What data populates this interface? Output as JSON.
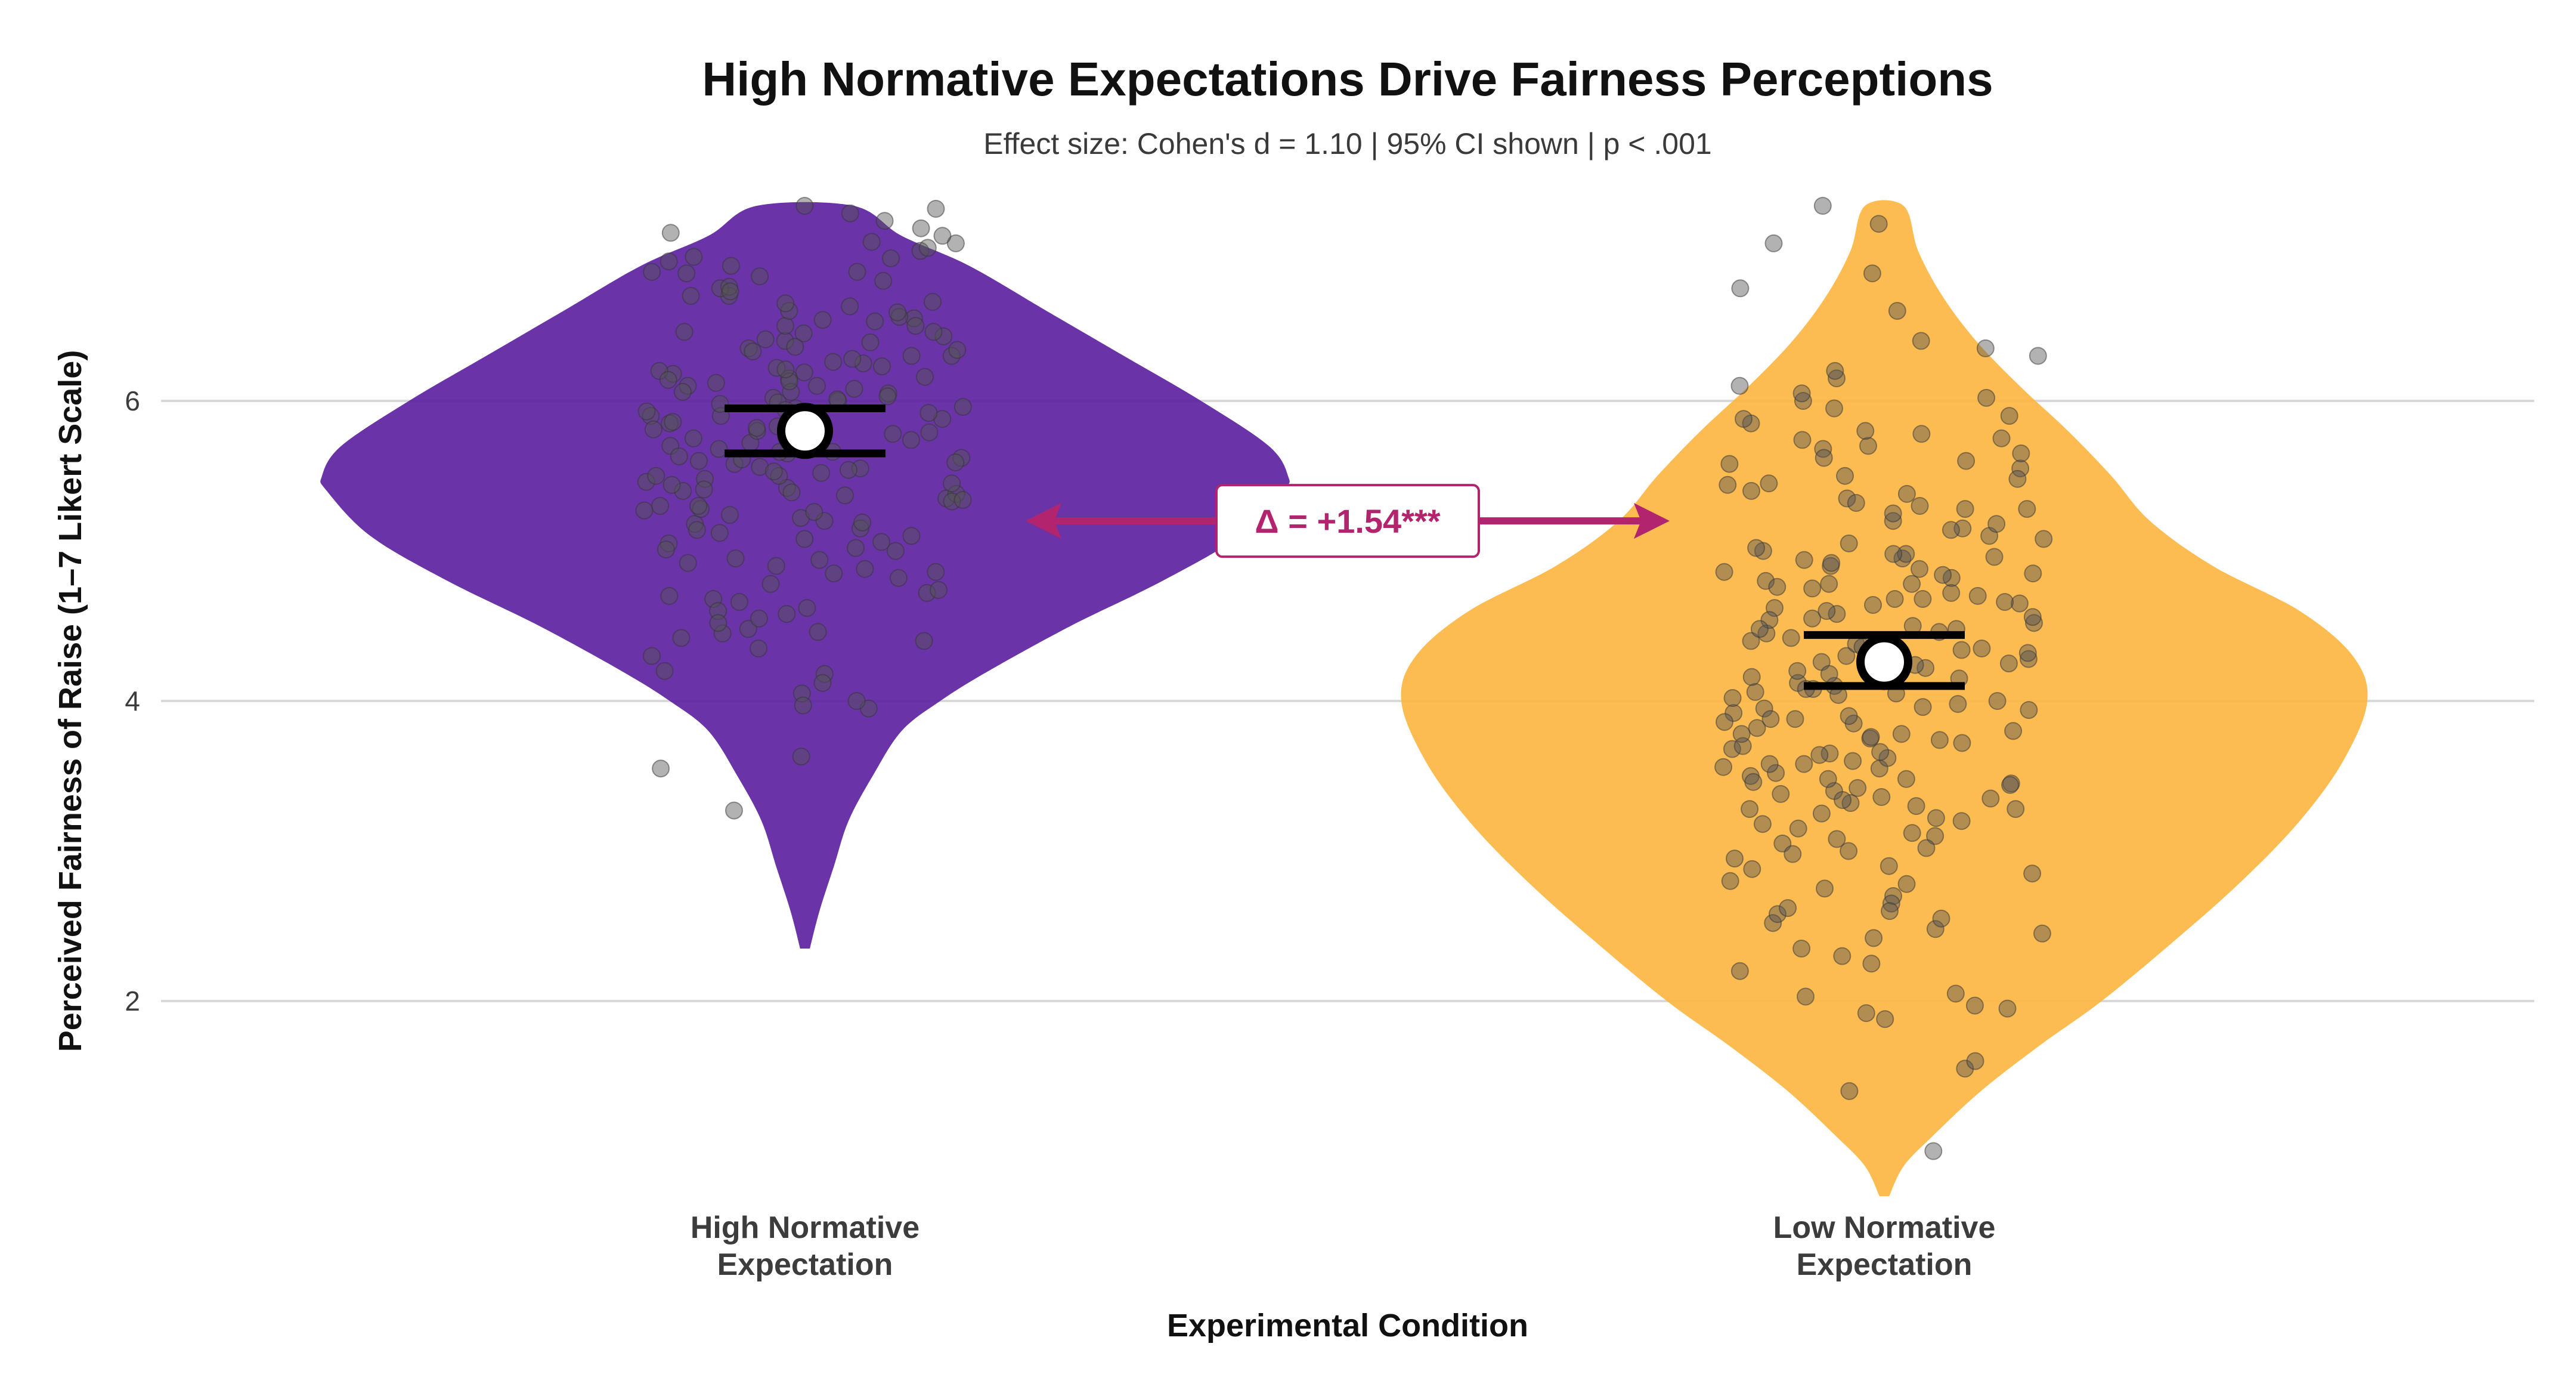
{
  "chart_data": {
    "type": "violin",
    "title": "High Normative Expectations Drive Fairness Perceptions",
    "subtitle": "Effect size: Cohen's d = 1.10 | 95% CI shown | p < .001",
    "xlabel": "Experimental Condition",
    "ylabel": "Perceived Fairness of Raise (1–7 Likert Scale)",
    "ylim": [
      0.7,
      7.3
    ],
    "yticks": [
      2,
      4,
      6
    ],
    "grid": "horizontal",
    "categories": [
      "High Normative\nExpectation",
      "Low Normative\nExpectation"
    ],
    "series": [
      {
        "name": "High Normative Expectation",
        "color": "#5A1E9E",
        "mean": 5.8,
        "ci": [
          5.65,
          5.95
        ],
        "density": [
          [
            2.35,
            0.01
          ],
          [
            2.6,
            0.03
          ],
          [
            2.9,
            0.06
          ],
          [
            3.2,
            0.09
          ],
          [
            3.5,
            0.14
          ],
          [
            3.8,
            0.2
          ],
          [
            4.0,
            0.28
          ],
          [
            4.2,
            0.38
          ],
          [
            4.5,
            0.55
          ],
          [
            4.8,
            0.74
          ],
          [
            5.1,
            0.9
          ],
          [
            5.4,
            0.99
          ],
          [
            5.5,
            1.0
          ],
          [
            5.7,
            0.96
          ],
          [
            6.0,
            0.82
          ],
          [
            6.3,
            0.66
          ],
          [
            6.6,
            0.5
          ],
          [
            6.9,
            0.34
          ],
          [
            7.1,
            0.2
          ],
          [
            7.3,
            0.1
          ]
        ],
        "points": [
          4.05,
          4.18,
          4.42,
          4.45,
          4.58,
          4.62,
          4.7,
          4.72,
          4.85,
          4.9,
          4.95,
          5.0,
          5.02,
          5.05,
          5.08,
          5.12,
          5.15,
          5.18,
          5.2,
          5.22,
          5.28,
          5.3,
          5.35,
          5.38,
          5.4,
          5.42,
          5.45,
          5.48,
          5.5,
          5.52,
          5.55,
          5.58,
          5.6,
          5.62,
          5.65,
          5.68,
          5.7,
          5.72,
          5.75,
          5.78,
          5.8,
          5.82,
          5.85,
          5.88,
          5.9,
          5.92,
          5.95,
          5.98,
          6.0,
          6.02,
          6.05,
          6.08,
          6.1,
          6.12,
          6.15,
          6.18,
          6.2,
          6.22,
          6.25,
          6.28,
          6.3,
          6.35,
          6.4,
          6.45,
          6.5,
          6.55,
          6.6,
          6.65,
          6.7,
          6.75,
          6.8,
          6.85,
          6.9,
          6.95,
          7.0,
          7.05,
          7.1,
          7.15,
          7.2,
          7.25,
          4.12,
          4.3,
          4.48,
          4.55,
          4.68,
          4.78,
          4.88,
          5.06,
          5.24,
          5.33,
          5.46,
          5.56,
          5.66,
          5.76,
          5.86,
          5.96,
          6.06,
          6.16,
          6.26,
          6.36,
          6.46,
          6.56,
          6.66,
          6.76,
          6.86,
          6.96,
          7.06,
          3.95,
          4.0,
          4.4,
          4.6,
          5.1,
          5.3,
          5.5,
          5.7,
          5.9,
          6.1,
          6.3,
          6.5,
          6.7,
          3.97,
          3.55,
          3.27,
          3.63,
          4.2,
          4.35,
          4.52,
          4.66,
          4.82,
          4.92,
          5.14,
          5.27,
          5.37,
          5.44,
          5.53,
          5.63,
          5.73,
          5.83,
          5.93,
          6.03,
          6.13,
          6.23,
          6.33,
          6.43,
          6.53,
          6.63,
          6.73,
          6.83,
          6.93,
          7.02,
          7.12,
          5.01,
          5.41,
          5.61,
          5.81,
          6.01,
          6.21,
          6.41,
          4.46,
          4.86,
          5.26,
          5.66,
          6.06,
          6.46,
          6.86,
          7.3,
          7.28,
          5.19,
          5.39,
          5.59,
          5.79,
          5.99,
          6.19,
          6.39,
          6.59,
          4.74,
          4.94,
          5.34,
          5.54,
          5.74,
          5.94,
          6.14,
          6.34,
          6.54
        ]
      },
      {
        "name": "Low Normative Expectation",
        "color": "#FDB53E",
        "mean": 4.26,
        "ci": [
          4.1,
          4.44
        ],
        "density": [
          [
            0.7,
            0.01
          ],
          [
            0.9,
            0.04
          ],
          [
            1.1,
            0.1
          ],
          [
            1.4,
            0.2
          ],
          [
            1.7,
            0.32
          ],
          [
            2.0,
            0.45
          ],
          [
            2.4,
            0.6
          ],
          [
            2.8,
            0.74
          ],
          [
            3.2,
            0.86
          ],
          [
            3.6,
            0.95
          ],
          [
            4.0,
            1.0
          ],
          [
            4.3,
            0.97
          ],
          [
            4.6,
            0.86
          ],
          [
            4.9,
            0.68
          ],
          [
            5.2,
            0.55
          ],
          [
            5.5,
            0.47
          ],
          [
            5.8,
            0.38
          ],
          [
            6.1,
            0.28
          ],
          [
            6.4,
            0.19
          ],
          [
            6.7,
            0.12
          ],
          [
            7.0,
            0.07
          ],
          [
            7.3,
            0.04
          ]
        ],
        "points": [
          1.0,
          1.4,
          1.55,
          1.6,
          1.88,
          1.92,
          1.95,
          2.05,
          2.2,
          2.3,
          2.42,
          2.45,
          2.48,
          2.52,
          2.55,
          2.58,
          2.62,
          2.7,
          2.75,
          2.8,
          2.85,
          2.9,
          2.95,
          3.0,
          3.05,
          3.1,
          3.15,
          3.2,
          3.25,
          3.28,
          3.3,
          3.32,
          3.35,
          3.38,
          3.4,
          3.42,
          3.45,
          3.48,
          3.5,
          3.52,
          3.55,
          3.58,
          3.6,
          3.62,
          3.65,
          3.68,
          3.7,
          3.72,
          3.75,
          3.78,
          3.8,
          3.82,
          3.85,
          3.88,
          3.9,
          3.92,
          3.95,
          3.98,
          4.0,
          4.02,
          4.05,
          4.08,
          4.1,
          4.12,
          4.15,
          4.18,
          4.2,
          4.22,
          4.25,
          4.28,
          4.3,
          4.32,
          4.35,
          4.38,
          4.4,
          4.42,
          4.45,
          4.48,
          4.5,
          4.52,
          4.55,
          4.58,
          4.6,
          4.62,
          4.65,
          4.68,
          4.7,
          4.72,
          4.75,
          4.78,
          4.8,
          4.82,
          4.85,
          4.88,
          4.9,
          4.92,
          4.95,
          4.98,
          5.0,
          5.05,
          5.1,
          5.15,
          5.2,
          5.25,
          5.3,
          5.35,
          5.4,
          5.45,
          5.5,
          5.55,
          5.6,
          5.65,
          5.7,
          5.75,
          5.8,
          5.85,
          5.9,
          5.95,
          6.0,
          6.05,
          6.1,
          6.15,
          6.2,
          6.3,
          6.35,
          6.4,
          6.6,
          6.75,
          6.85,
          7.05,
          7.18,
          7.3,
          2.35,
          2.65,
          2.78,
          2.98,
          3.12,
          3.22,
          3.36,
          3.46,
          3.56,
          3.66,
          3.76,
          3.86,
          3.96,
          4.06,
          4.16,
          4.26,
          4.36,
          4.46,
          4.56,
          4.66,
          4.76,
          4.86,
          4.96,
          5.08,
          5.18,
          5.28,
          5.38,
          5.48,
          5.58,
          5.68,
          5.78,
          5.88,
          3.02,
          3.34,
          3.64,
          3.94,
          4.24,
          4.54,
          4.84,
          5.14,
          5.44,
          5.74,
          3.18,
          3.48,
          3.78,
          4.08,
          4.38,
          4.68,
          4.98,
          5.28,
          2.88,
          3.08,
          3.28,
          3.58,
          3.88,
          4.18,
          4.48,
          4.78,
          5.02,
          5.32,
          5.62,
          6.02,
          2.25,
          2.6,
          3.44,
          3.74,
          4.04,
          4.34,
          4.64,
          4.94,
          1.97,
          2.03
        ]
      }
    ],
    "annotation": {
      "text": "Δ = +1.54***",
      "color": "#B3246E",
      "from": "High Normative Expectation",
      "to": "Low Normative Expectation",
      "y": 5.2
    }
  }
}
